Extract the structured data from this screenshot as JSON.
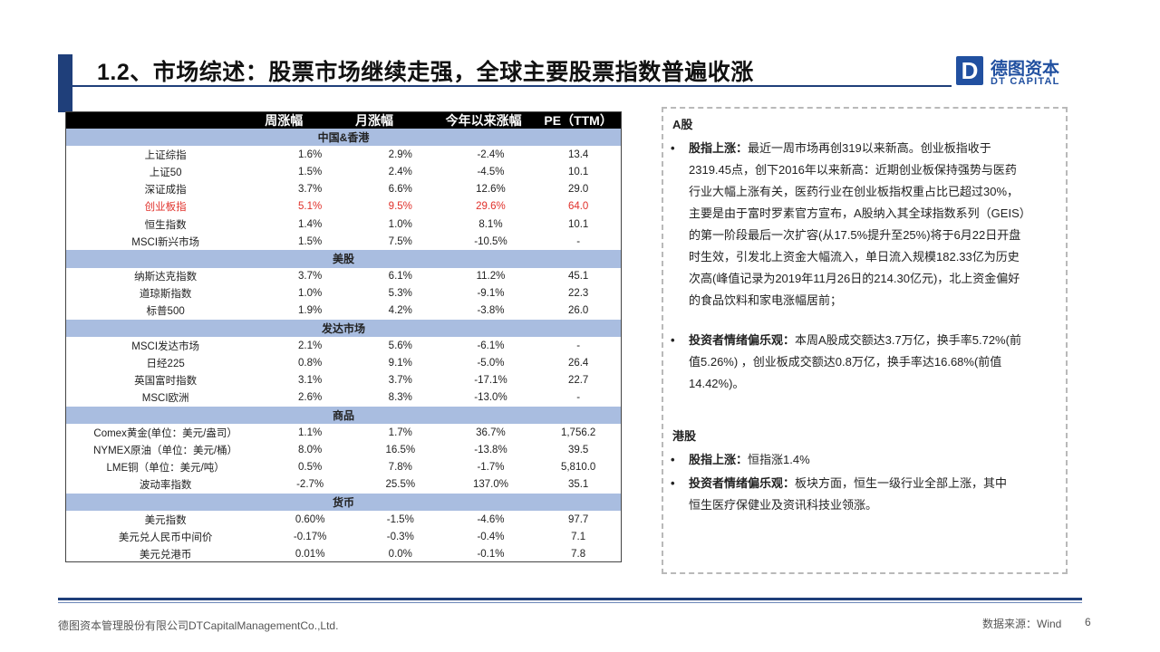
{
  "header": {
    "title": "1.2、市场综述：股票市场继续走强，全球主要股票指数普遍收涨",
    "logo_cn": "德图资本",
    "logo_en": "DT CAPITAL",
    "logo_mark": "D"
  },
  "table": {
    "columns": [
      "",
      "周涨幅",
      "月涨幅",
      "今年以来涨幅",
      "PE（TTM）"
    ],
    "sections": [
      {
        "name": "中国&香港",
        "rows": [
          {
            "name": "上证综指",
            "w": "1.6%",
            "m": "2.9%",
            "y": "-2.4%",
            "pe": "13.4"
          },
          {
            "name": "上证50",
            "w": "1.5%",
            "m": "2.4%",
            "y": "-4.5%",
            "pe": "10.1"
          },
          {
            "name": "深证成指",
            "w": "3.7%",
            "m": "6.6%",
            "y": "12.6%",
            "pe": "29.0"
          },
          {
            "name": "创业板指",
            "w": "5.1%",
            "m": "9.5%",
            "y": "29.6%",
            "pe": "64.0",
            "highlight": true
          },
          {
            "name": "恒生指数",
            "w": "1.4%",
            "m": "1.0%",
            "y": "8.1%",
            "pe": "10.1"
          },
          {
            "name": "MSCI新兴市场",
            "w": "1.5%",
            "m": "7.5%",
            "y": "-10.5%",
            "pe": "-"
          }
        ]
      },
      {
        "name": "美股",
        "rows": [
          {
            "name": "纳斯达克指数",
            "w": "3.7%",
            "m": "6.1%",
            "y": "11.2%",
            "pe": "45.1"
          },
          {
            "name": "道琼斯指数",
            "w": "1.0%",
            "m": "5.3%",
            "y": "-9.1%",
            "pe": "22.3"
          },
          {
            "name": "标普500",
            "w": "1.9%",
            "m": "4.2%",
            "y": "-3.8%",
            "pe": "26.0"
          }
        ]
      },
      {
        "name": "发达市场",
        "rows": [
          {
            "name": "MSCI发达市场",
            "w": "2.1%",
            "m": "5.6%",
            "y": "-6.1%",
            "pe": "-"
          },
          {
            "name": "日经225",
            "w": "0.8%",
            "m": "9.1%",
            "y": "-5.0%",
            "pe": "26.4"
          },
          {
            "name": "英国富时指数",
            "w": "3.1%",
            "m": "3.7%",
            "y": "-17.1%",
            "pe": "22.7"
          },
          {
            "name": "MSCI欧洲",
            "w": "2.6%",
            "m": "8.3%",
            "y": "-13.0%",
            "pe": "-"
          }
        ]
      },
      {
        "name": "商品",
        "rows": [
          {
            "name": "Comex黄金(单位：美元/盎司）",
            "w": "1.1%",
            "m": "1.7%",
            "y": "36.7%",
            "pe": "1,756.2"
          },
          {
            "name": "NYMEX原油（单位：美元/桶）",
            "w": "8.0%",
            "m": "16.5%",
            "y": "-13.8%",
            "pe": "39.5"
          },
          {
            "name": "LME铜（单位：美元/吨）",
            "w": "0.5%",
            "m": "7.8%",
            "y": "-1.7%",
            "pe": "5,810.0"
          },
          {
            "name": "波动率指数",
            "w": "-2.7%",
            "m": "25.5%",
            "y": "137.0%",
            "pe": "35.1"
          }
        ]
      },
      {
        "name": "货币",
        "rows": [
          {
            "name": "美元指数",
            "w": "0.60%",
            "m": "-1.5%",
            "y": "-4.6%",
            "pe": "97.7"
          },
          {
            "name": "美元兑人民币中间价",
            "w": "-0.17%",
            "m": "-0.3%",
            "y": "-0.4%",
            "pe": "7.1"
          },
          {
            "name": "美元兑港币",
            "w": "0.01%",
            "m": "0.0%",
            "y": "-0.1%",
            "pe": "7.8"
          }
        ]
      }
    ]
  },
  "panel": {
    "a_share": {
      "heading": "A股",
      "b1_lead": "股指上涨：",
      "b1_lines": [
        "最近一周市场再创319以来新高。创业板指收于",
        "2319.45点，创下2016年以来新高：近期创业板保持强势与医药",
        "行业大幅上涨有关，医药行业在创业板指权重占比已超过30%，",
        "主要是由于富时罗素官方宣布，A股纳入其全球指数系列（GEIS）",
        "的第一阶段最后一次扩容(从17.5%提升至25%)将于6月22日开盘",
        "时生效，引发北上资金大幅流入，单日流入规模182.33亿为历史",
        "次高(峰值记录为2019年11月26日的214.30亿元)，北上资金偏好",
        "的食品饮料和家电涨幅居前；"
      ],
      "b2_lead": "投资者情绪偏乐观：",
      "b2_lines": [
        "本周A股成交额达3.7万亿，换手率5.72%(前",
        "值5.26%) ，创业板成交额达0.8万亿，换手率达16.68%(前值",
        "14.42%)。"
      ]
    },
    "hk": {
      "heading": "港股",
      "b1_lead": "股指上涨：",
      "b1_text": "恒指涨1.4%",
      "b2_lead": "投资者情绪偏乐观：",
      "b2_lines": [
        "板块方面，恒生一级行业全部上涨，其中",
        "恒生医疗保健业及资讯科技业领涨。"
      ]
    },
    "bullet_char": "•"
  },
  "footer": {
    "company": "德图资本管理股份有限公司DTCapitalManagementCo.,Ltd.",
    "source": "数据来源：Wind",
    "page": "6"
  }
}
